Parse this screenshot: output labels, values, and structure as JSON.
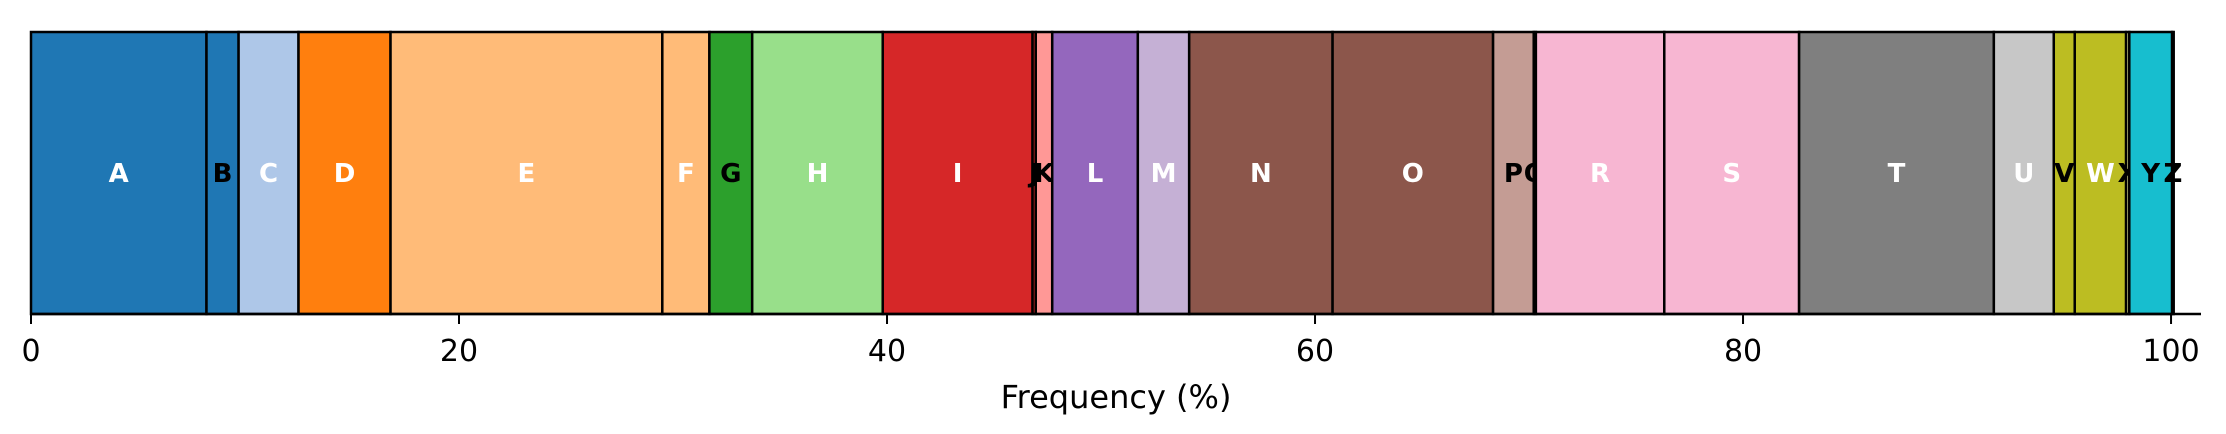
{
  "chart_data": {
    "type": "bar",
    "orientation": "horizontal-stacked",
    "title": "",
    "xlabel": "Frequency (%)",
    "ylabel": "",
    "xlim": [
      0,
      101.4
    ],
    "xticks": [
      0,
      20,
      40,
      60,
      80,
      100
    ],
    "tick_labels": [
      "0",
      "20",
      "40",
      "60",
      "80",
      "100"
    ],
    "grid": "vertical dashed",
    "categories": [
      "A",
      "B",
      "C",
      "D",
      "E",
      "F",
      "G",
      "H",
      "I",
      "J",
      "K",
      "L",
      "M",
      "N",
      "O",
      "P",
      "Q",
      "R",
      "S",
      "T",
      "U",
      "V",
      "W",
      "X",
      "Y",
      "Z"
    ],
    "values": [
      8.2,
      1.5,
      2.8,
      4.3,
      12.7,
      2.2,
      2.0,
      6.1,
      7.0,
      0.15,
      0.77,
      4.0,
      2.4,
      6.7,
      7.5,
      1.9,
      0.1,
      6.0,
      6.3,
      9.1,
      2.8,
      0.98,
      2.4,
      0.15,
      2.0,
      0.074
    ],
    "colors": [
      "#1f77b4",
      "#1f77b4",
      "#aec7e8",
      "#ff7f0e",
      "#ffbb78",
      "#ffbb78",
      "#2ca02c",
      "#98df8a",
      "#d62728",
      "#d62728",
      "#ff9896",
      "#9467bd",
      "#c5b0d5",
      "#8c564b",
      "#8c564b",
      "#c49c94",
      "#e377c2",
      "#f7b6d2",
      "#f7b6d2",
      "#7f7f7f",
      "#c7c7c7",
      "#bcbd22",
      "#bcbd22",
      "#dbdb8d",
      "#17becf",
      "#9edae5"
    ],
    "label_colors": [
      "#ffffff",
      "#000000",
      "#ffffff",
      "#ffffff",
      "#ffffff",
      "#ffffff",
      "#000000",
      "#ffffff",
      "#ffffff",
      "#000000",
      "#000000",
      "#ffffff",
      "#ffffff",
      "#ffffff",
      "#ffffff",
      "#000000",
      "#000000",
      "#ffffff",
      "#ffffff",
      "#ffffff",
      "#ffffff",
      "#000000",
      "#ffffff",
      "#000000",
      "#000000",
      "#000000"
    ]
  }
}
